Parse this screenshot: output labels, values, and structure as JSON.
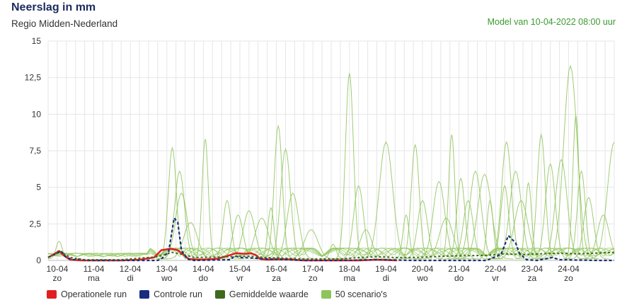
{
  "header": {
    "title": "Neerslag in mm",
    "subtitle": "Regio Midden-Nederland",
    "model": "Model van 10-04-2022 08:00 uur"
  },
  "colors": {
    "operational": "#e02020",
    "control": "#1a2c80",
    "average": "#3f6a1e",
    "scenarios": "#8ec45a",
    "grid": "#e6e6e6"
  },
  "legend": [
    {
      "label": "Operationele run",
      "color": "#e02020"
    },
    {
      "label": "Controle run",
      "color": "#1a2c80"
    },
    {
      "label": "Gemiddelde waarde",
      "color": "#3f6a1e"
    },
    {
      "label": "50 scenario's",
      "color": "#8ec45a"
    }
  ],
  "chart_data": {
    "type": "line",
    "ylim": [
      0,
      15
    ],
    "yticks": [
      "0",
      "2,5",
      "5",
      "7,5",
      "10",
      "12,5",
      "15"
    ],
    "xlim": [
      0,
      15.5
    ],
    "x_dates": [
      "10-04",
      "11-04",
      "12-04",
      "13-04",
      "14-04",
      "15-04",
      "16-04",
      "17-04",
      "18-04",
      "19-04",
      "20-04",
      "21-04",
      "22-04",
      "23-04",
      "24-04"
    ],
    "x_days": [
      "zo",
      "ma",
      "di",
      "wo",
      "do",
      "vr",
      "za",
      "zo",
      "ma",
      "di",
      "wo",
      "do",
      "vr",
      "za",
      "zo"
    ],
    "series": [
      {
        "name": "Operationele run",
        "color": "#e02020",
        "points": [
          [
            0,
            0.2
          ],
          [
            0.15,
            0.4
          ],
          [
            0.3,
            0.65
          ],
          [
            0.45,
            0.3
          ],
          [
            0.6,
            0.05
          ],
          [
            0.9,
            0
          ],
          [
            2,
            0
          ],
          [
            2.5,
            0.05
          ],
          [
            2.9,
            0.2
          ],
          [
            3.1,
            0.7
          ],
          [
            3.35,
            0.8
          ],
          [
            3.55,
            0.7
          ],
          [
            3.7,
            0.4
          ],
          [
            3.85,
            0.1
          ],
          [
            4.1,
            0.05
          ],
          [
            4.6,
            0.1
          ],
          [
            4.9,
            0.3
          ],
          [
            5.15,
            0.5
          ],
          [
            5.4,
            0.45
          ],
          [
            5.55,
            0.5
          ],
          [
            5.7,
            0.35
          ],
          [
            5.8,
            0.1
          ],
          [
            6,
            0.05
          ],
          [
            6.5,
            0.08
          ],
          [
            7,
            0
          ],
          [
            8,
            0
          ],
          [
            8.5,
            0
          ],
          [
            9,
            0.05
          ],
          [
            9.55,
            0
          ]
        ]
      },
      {
        "name": "Controle run",
        "color": "#1a2c80",
        "points": [
          [
            0,
            0.2
          ],
          [
            0.25,
            0.5
          ],
          [
            0.35,
            0.65
          ],
          [
            0.5,
            0.2
          ],
          [
            0.7,
            0.05
          ],
          [
            0.9,
            0.1
          ],
          [
            1,
            0
          ],
          [
            3,
            0
          ],
          [
            3.1,
            0.1
          ],
          [
            3.3,
            0.6
          ],
          [
            3.45,
            2.9
          ],
          [
            3.55,
            2.6
          ],
          [
            3.65,
            0.7
          ],
          [
            3.8,
            0.1
          ],
          [
            4,
            0
          ],
          [
            5,
            0.05
          ],
          [
            5.1,
            0.3
          ],
          [
            5.3,
            0.2
          ],
          [
            6,
            0.1
          ],
          [
            7,
            0
          ],
          [
            8,
            0
          ],
          [
            9,
            0.05
          ],
          [
            10,
            0
          ],
          [
            11,
            0
          ],
          [
            12,
            0
          ],
          [
            12.4,
            0.4
          ],
          [
            12.6,
            1.7
          ],
          [
            12.8,
            1.2
          ],
          [
            12.9,
            0.5
          ],
          [
            13.1,
            0.05
          ],
          [
            13.4,
            0
          ],
          [
            13.8,
            0.2
          ],
          [
            14,
            0.05
          ],
          [
            15,
            0
          ],
          [
            15.5,
            0
          ]
        ]
      },
      {
        "name": "Gemiddelde waarde",
        "color": "#3f6a1e",
        "points": [
          [
            0,
            0.2
          ],
          [
            0.35,
            0.6
          ],
          [
            0.6,
            0.2
          ],
          [
            1,
            0.05
          ],
          [
            2,
            0.05
          ],
          [
            3,
            0.25
          ],
          [
            3.4,
            0.55
          ],
          [
            3.7,
            0.4
          ],
          [
            4,
            0.2
          ],
          [
            5,
            0.25
          ],
          [
            5.4,
            0.3
          ],
          [
            6,
            0.2
          ],
          [
            7,
            0.1
          ],
          [
            8,
            0.1
          ],
          [
            8.5,
            0.2
          ],
          [
            9,
            0.25
          ],
          [
            9.5,
            0.2
          ],
          [
            10,
            0.2
          ],
          [
            11,
            0.3
          ],
          [
            12,
            0.35
          ],
          [
            12.5,
            0.45
          ],
          [
            13,
            0.4
          ],
          [
            13.5,
            0.45
          ],
          [
            14,
            0.5
          ],
          [
            14.5,
            0.45
          ],
          [
            15,
            0.5
          ],
          [
            15.5,
            0.55
          ]
        ]
      }
    ],
    "scenario_peaks": [
      [
        0.3,
        1.2
      ],
      [
        3.4,
        7.6
      ],
      [
        3.6,
        6.0
      ],
      [
        3.65,
        4.5
      ],
      [
        3.9,
        2.5
      ],
      [
        4.3,
        8.2
      ],
      [
        4.9,
        4.0
      ],
      [
        5.2,
        3.0
      ],
      [
        5.5,
        3.3
      ],
      [
        5.85,
        2.8
      ],
      [
        6.1,
        3.5
      ],
      [
        6.3,
        9.1
      ],
      [
        6.5,
        7.5
      ],
      [
        6.7,
        4.5
      ],
      [
        7.2,
        2.0
      ],
      [
        7.8,
        1.0
      ],
      [
        8.25,
        12.7
      ],
      [
        8.5,
        5.0
      ],
      [
        8.7,
        2.0
      ],
      [
        9.25,
        8.0
      ],
      [
        9.8,
        3.0
      ],
      [
        10.05,
        7.8
      ],
      [
        10.25,
        4.0
      ],
      [
        10.7,
        5.3
      ],
      [
        10.9,
        2.8
      ],
      [
        11.05,
        8.5
      ],
      [
        11.3,
        5.5
      ],
      [
        11.5,
        4.0
      ],
      [
        11.7,
        6.0
      ],
      [
        11.95,
        5.8
      ],
      [
        12.1,
        4.0
      ],
      [
        12.5,
        5.0
      ],
      [
        12.55,
        8.0
      ],
      [
        12.8,
        6.0
      ],
      [
        12.95,
        4.0
      ],
      [
        13.15,
        5.2
      ],
      [
        13.5,
        8.5
      ],
      [
        13.75,
        6.5
      ],
      [
        14.05,
        6.8
      ],
      [
        14.3,
        13.2
      ],
      [
        14.45,
        9.8
      ],
      [
        14.6,
        6.0
      ],
      [
        14.8,
        4.2
      ],
      [
        15.2,
        3.0
      ],
      [
        15.5,
        8.0
      ]
    ]
  }
}
